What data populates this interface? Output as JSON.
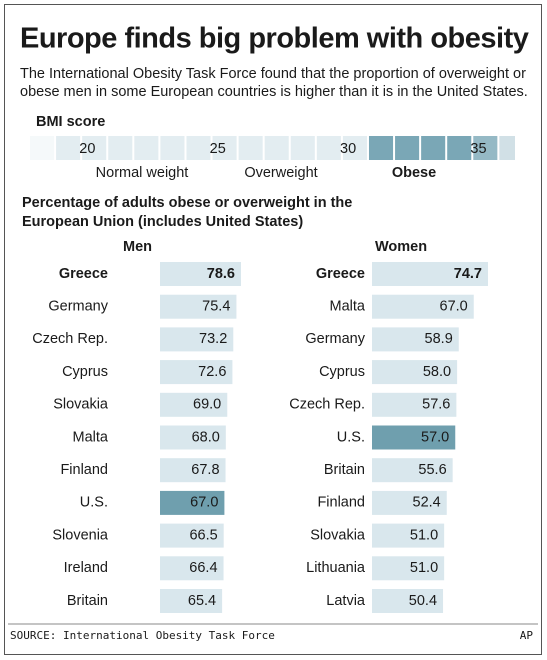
{
  "title": "Europe finds big problem with obesity",
  "subtitle": [
    "The International Obesity Task Force found that the proportion of overweight or",
    "obese men in some European countries is higher than it is in the United States."
  ],
  "bmi_scale": {
    "label": "BMI score",
    "xlim": [
      17.8,
      36.4
    ],
    "ticks": [
      20,
      25,
      30,
      35
    ],
    "zones": [
      "Normal weight",
      "Overweight",
      "Obese"
    ],
    "color": "#e3edf1",
    "obese_color": "#7aa7b6"
  },
  "section_title": [
    "Percentage of adults obese or overweight in the",
    "European Union (includes United States)"
  ],
  "chart_data": [
    {
      "type": "bar",
      "orientation": "horizontal",
      "title": "Men",
      "categories": [
        "Greece",
        "Germany",
        "Czech Rep.",
        "Cyprus",
        "Slovakia",
        "Malta",
        "Finland",
        "U.S.",
        "Slovenia",
        "Ireland",
        "Britain"
      ],
      "values": [
        78.6,
        75.4,
        73.2,
        72.6,
        69.0,
        68.0,
        67.8,
        67.0,
        66.5,
        66.4,
        65.4
      ],
      "value_labels": [
        "78.6",
        "75.4",
        "73.2",
        "72.6",
        "69.0",
        "68.0",
        "67.8",
        "67.0",
        "66.5",
        "66.4",
        "65.4"
      ],
      "colors": [
        "#d9e7ed",
        "#d9e7ed",
        "#d9e7ed",
        "#d9e7ed",
        "#d9e7ed",
        "#d9e7ed",
        "#d9e7ed",
        "#6f9fae",
        "#d9e7ed",
        "#d9e7ed",
        "#d9e7ed"
      ],
      "xlim": [
        22,
        80
      ]
    },
    {
      "type": "bar",
      "orientation": "horizontal",
      "title": "Women",
      "categories": [
        "Greece",
        "Malta",
        "Germany",
        "Cyprus",
        "Czech Rep.",
        "U.S.",
        "Britain",
        "Finland",
        "Slovakia",
        "Lithuania",
        "Latvia"
      ],
      "values": [
        74.7,
        67.0,
        58.9,
        58.0,
        57.6,
        57.0,
        55.6,
        52.4,
        51.0,
        51.0,
        50.4
      ],
      "value_labels": [
        "74.7",
        "67.0",
        "58.9",
        "58.0",
        "57.6",
        "57.0",
        "55.6",
        "52.4",
        "51.0",
        "51.0",
        "50.4"
      ],
      "colors": [
        "#d9e7ed",
        "#d9e7ed",
        "#d9e7ed",
        "#d9e7ed",
        "#d9e7ed",
        "#6f9fae",
        "#d9e7ed",
        "#d9e7ed",
        "#d9e7ed",
        "#d9e7ed",
        "#d9e7ed"
      ],
      "xlim": [
        12,
        80
      ]
    }
  ],
  "source": "SOURCE: International Obesity Task Force",
  "credit": "AP"
}
